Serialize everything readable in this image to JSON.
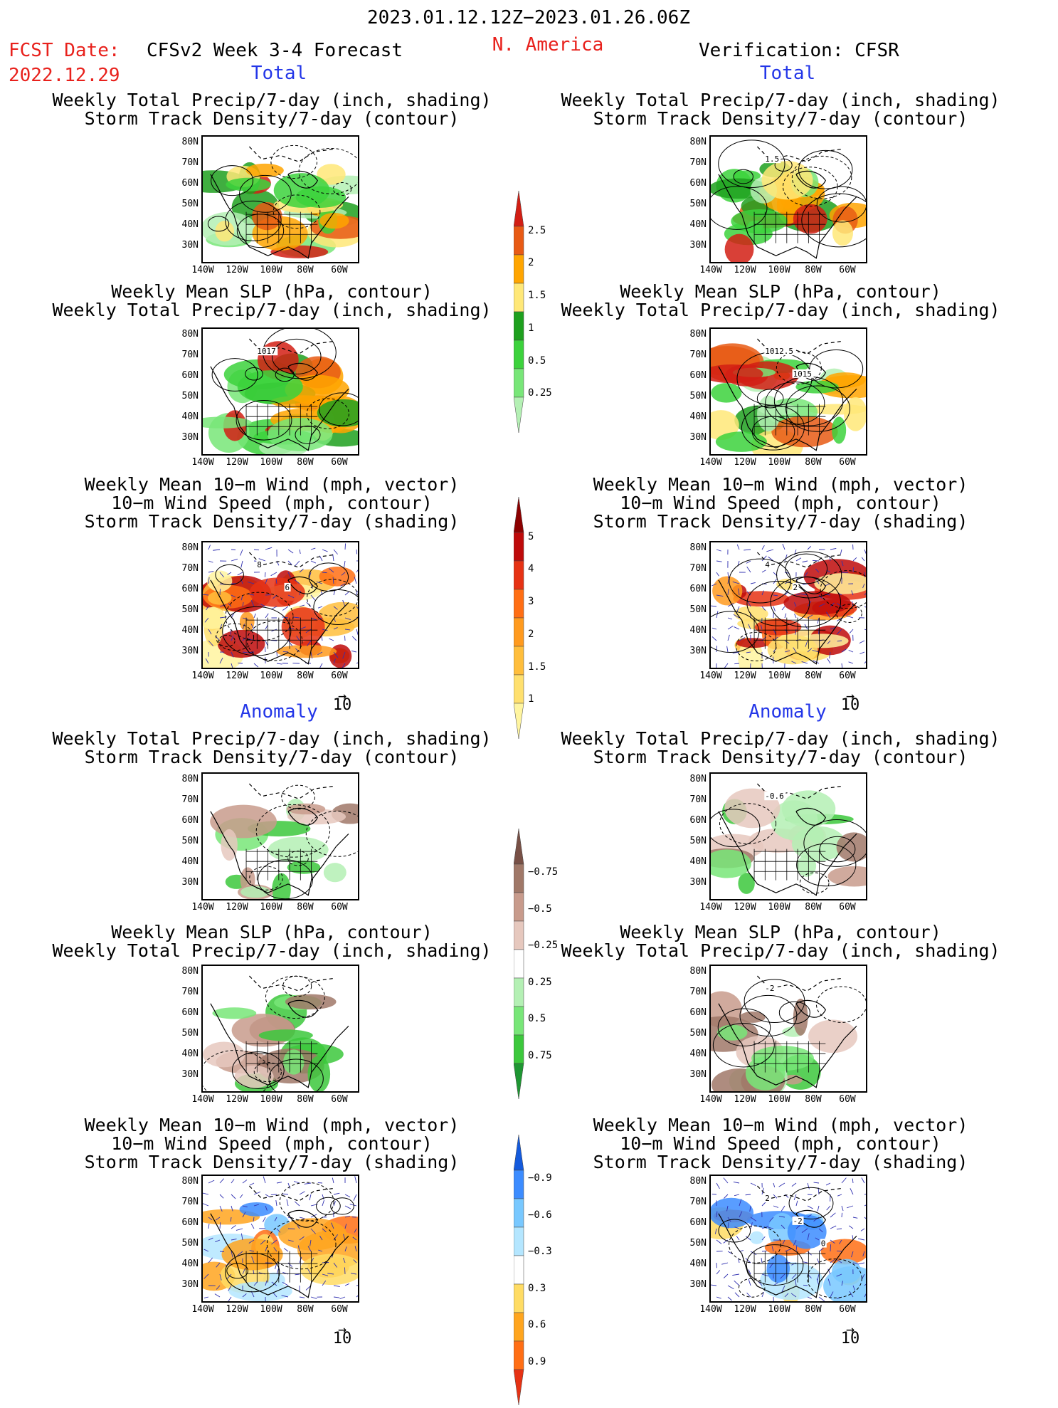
{
  "header": {
    "date_range": "2023.01.12.12Z−2023.01.26.06Z",
    "fcst_label": "FCST Date:",
    "fcst_date": "2022.12.29",
    "model_title": "CFSv2 Week 3-4 Forecast",
    "region": "N. America",
    "verification": "Verification: CFSR"
  },
  "sections": {
    "total_label": "Total",
    "anomaly_label": "Anomaly"
  },
  "chart_data": [
    {
      "type": "heatmap",
      "id": "fc-total-precip-storm",
      "column": "CFSv2 Forecast",
      "section": "Total",
      "title_lines": [
        "Weekly Total Precip/7-day (inch, shading)",
        "Storm Track Density/7-day (contour)"
      ],
      "xticks": [
        "140W",
        "120W",
        "100W",
        "80W",
        "60W"
      ],
      "yticks": [
        "80N",
        "70N",
        "60N",
        "50N",
        "40N",
        "30N"
      ],
      "contour_labels": []
    },
    {
      "type": "heatmap",
      "id": "fc-total-slp-precip",
      "column": "CFSv2 Forecast",
      "section": "Total",
      "title_lines": [
        "Weekly Mean SLP (hPa, contour)",
        "Weekly Total Precip/7-day (inch, shading)"
      ],
      "xticks": [
        "140W",
        "120W",
        "100W",
        "80W",
        "60W"
      ],
      "yticks": [
        "80N",
        "70N",
        "60N",
        "50N",
        "40N",
        "30N"
      ],
      "contour_labels": [
        "1017"
      ]
    },
    {
      "type": "heatmap",
      "id": "fc-total-wind-storm",
      "column": "CFSv2 Forecast",
      "section": "Total",
      "title_lines": [
        "Weekly Mean 10−m Wind (mph, vector)",
        "10−m Wind Speed (mph, contour)",
        "Storm Track Density/7-day (shading)"
      ],
      "xticks": [
        "140W",
        "120W",
        "100W",
        "80W",
        "60W"
      ],
      "yticks": [
        "80N",
        "70N",
        "60N",
        "50N",
        "40N",
        "30N"
      ],
      "vector_scale": "10",
      "contour_labels": [
        "8",
        "6"
      ]
    },
    {
      "type": "heatmap",
      "id": "fc-anom-precip-storm",
      "column": "CFSv2 Forecast",
      "section": "Anomaly",
      "title_lines": [
        "Weekly Total Precip/7-day (inch, shading)",
        "Storm Track Density/7-day (contour)"
      ],
      "xticks": [
        "140W",
        "120W",
        "100W",
        "80W",
        "60W"
      ],
      "yticks": [
        "80N",
        "70N",
        "60N",
        "50N",
        "40N",
        "30N"
      ],
      "contour_labels": []
    },
    {
      "type": "heatmap",
      "id": "fc-anom-slp-precip",
      "column": "CFSv2 Forecast",
      "section": "Anomaly",
      "title_lines": [
        "Weekly Mean SLP (hPa, contour)",
        "Weekly Total Precip/7-day (inch, shading)"
      ],
      "xticks": [
        "140W",
        "120W",
        "100W",
        "80W",
        "60W"
      ],
      "yticks": [
        "80N",
        "70N",
        "60N",
        "50N",
        "40N",
        "30N"
      ],
      "contour_labels": []
    },
    {
      "type": "heatmap",
      "id": "fc-anom-wind-storm",
      "column": "CFSv2 Forecast",
      "section": "Anomaly",
      "title_lines": [
        "Weekly Mean 10−m Wind (mph, vector)",
        "10−m Wind Speed (mph, contour)",
        "Storm Track Density/7-day (shading)"
      ],
      "xticks": [
        "140W",
        "120W",
        "100W",
        "80W",
        "60W"
      ],
      "yticks": [
        "80N",
        "70N",
        "60N",
        "50N",
        "40N",
        "30N"
      ],
      "vector_scale": "10",
      "contour_labels": []
    },
    {
      "type": "heatmap",
      "id": "ver-total-precip-storm",
      "column": "Verification: CFSR",
      "section": "Total",
      "title_lines": [
        "Weekly Total Precip/7-day (inch, shading)",
        "Storm Track Density/7-day (contour)"
      ],
      "xticks": [
        "140W",
        "120W",
        "100W",
        "80W",
        "60W"
      ],
      "yticks": [
        "80N",
        "70N",
        "60N",
        "50N",
        "40N",
        "30N"
      ],
      "contour_labels": [
        "1.5"
      ]
    },
    {
      "type": "heatmap",
      "id": "ver-total-slp-precip",
      "column": "Verification: CFSR",
      "section": "Total",
      "title_lines": [
        "Weekly Mean SLP (hPa, contour)",
        "Weekly Total Precip/7-day (inch, shading)"
      ],
      "xticks": [
        "140W",
        "120W",
        "100W",
        "80W",
        "60W"
      ],
      "yticks": [
        "80N",
        "70N",
        "60N",
        "50N",
        "40N",
        "30N"
      ],
      "contour_labels": [
        "1012.5",
        "1015"
      ]
    },
    {
      "type": "heatmap",
      "id": "ver-total-wind-storm",
      "column": "Verification: CFSR",
      "section": "Total",
      "title_lines": [
        "Weekly Mean 10−m Wind (mph, vector)",
        "10−m Wind Speed (mph, contour)",
        "Storm Track Density/7-day (shading)"
      ],
      "xticks": [
        "140W",
        "120W",
        "100W",
        "80W",
        "60W"
      ],
      "yticks": [
        "80N",
        "70N",
        "60N",
        "50N",
        "40N",
        "30N"
      ],
      "vector_scale": "10",
      "contour_labels": [
        "4",
        "2"
      ]
    },
    {
      "type": "heatmap",
      "id": "ver-anom-precip-storm",
      "column": "Verification: CFSR",
      "section": "Anomaly",
      "title_lines": [
        "Weekly Total Precip/7-day (inch, shading)",
        "Storm Track Density/7-day (contour)"
      ],
      "xticks": [
        "140W",
        "120W",
        "100W",
        "80W",
        "60W"
      ],
      "yticks": [
        "80N",
        "70N",
        "60N",
        "50N",
        "40N",
        "30N"
      ],
      "contour_labels": [
        "-0.6"
      ]
    },
    {
      "type": "heatmap",
      "id": "ver-anom-slp-precip",
      "column": "Verification: CFSR",
      "section": "Anomaly",
      "title_lines": [
        "Weekly Mean SLP (hPa, contour)",
        "Weekly Total Precip/7-day (inch, shading)"
      ],
      "xticks": [
        "140W",
        "120W",
        "100W",
        "80W",
        "60W"
      ],
      "yticks": [
        "80N",
        "70N",
        "60N",
        "50N",
        "40N",
        "30N"
      ],
      "contour_labels": [
        "-2"
      ]
    },
    {
      "type": "heatmap",
      "id": "ver-anom-wind-storm",
      "column": "Verification: CFSR",
      "section": "Anomaly",
      "title_lines": [
        "Weekly Mean 10−m Wind (mph, vector)",
        "10−m Wind Speed (mph, contour)",
        "Storm Track Density/7-day (shading)"
      ],
      "xticks": [
        "140W",
        "120W",
        "100W",
        "80W",
        "60W"
      ],
      "yticks": [
        "80N",
        "70N",
        "60N",
        "50N",
        "40N",
        "30N"
      ],
      "vector_scale": "10",
      "contour_labels": [
        "2",
        "-2",
        "0"
      ]
    }
  ],
  "colorbars": [
    {
      "id": "cb-precip-total",
      "labels": [
        "0.25",
        "0.5",
        "1",
        "1.5",
        "2",
        "2.5"
      ],
      "colors": [
        "#b4f0b4",
        "#78e678",
        "#3cd23c",
        "#1ea01e",
        "#ffe878",
        "#ffa500",
        "#e85a14",
        "#d21e14"
      ]
    },
    {
      "id": "cb-storm-total",
      "labels": [
        "1",
        "1.5",
        "2",
        "3",
        "4",
        "5"
      ],
      "colors": [
        "#fff5a0",
        "#ffe06e",
        "#ffbe3c",
        "#ff9a1e",
        "#ff6e14",
        "#e63214",
        "#be0a0a",
        "#8c0000"
      ]
    },
    {
      "id": "cb-precip-anom",
      "labels": [
        "0.75",
        "0.5",
        "0.25",
        "−0.25",
        "−0.5",
        "−0.75"
      ],
      "colors": [
        "#1e9632",
        "#3cc83c",
        "#78e678",
        "#b4f0b4",
        "#ffffff",
        "#e6c8be",
        "#c89b8c",
        "#a07868",
        "#785046"
      ]
    },
    {
      "id": "cb-storm-anom",
      "labels": [
        "0.9",
        "0.6",
        "0.3",
        "−0.3",
        "−0.6",
        "−0.9"
      ],
      "colors": [
        "#e63214",
        "#ff6e14",
        "#ffa51e",
        "#ffdc64",
        "#ffffff",
        "#b4e6ff",
        "#78c8ff",
        "#3c8cff",
        "#145adc"
      ]
    }
  ]
}
